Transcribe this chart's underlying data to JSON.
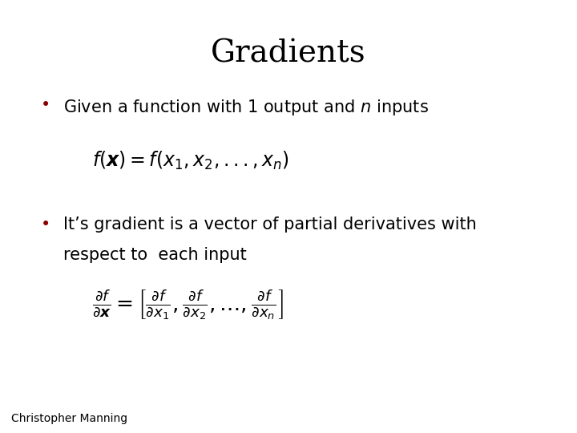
{
  "title": "Gradients",
  "title_fontsize": 28,
  "background_color": "#ffffff",
  "bullet_color": "#8B0000",
  "text_color": "#000000",
  "bullet1_line": "Given a function with 1 output and $n$ inputs",
  "bullet2_line1": "It’s gradient is a vector of partial derivatives with",
  "bullet2_line2": "respect to  each input",
  "formula1": "$f(\\boldsymbol{x}) = f(x_1, x_2, ..., x_n)$",
  "formula2": "$\\frac{\\partial f}{\\partial \\boldsymbol{x}} = \\left[ \\frac{\\partial f}{\\partial x_1}, \\frac{\\partial f}{\\partial x_2}, ...., \\frac{\\partial f}{\\partial x_n} \\right]$",
  "footer": "Christopher Manning",
  "footer_fontsize": 10,
  "bullet_fontsize": 15,
  "formula1_fontsize": 17,
  "formula2_fontsize": 19
}
